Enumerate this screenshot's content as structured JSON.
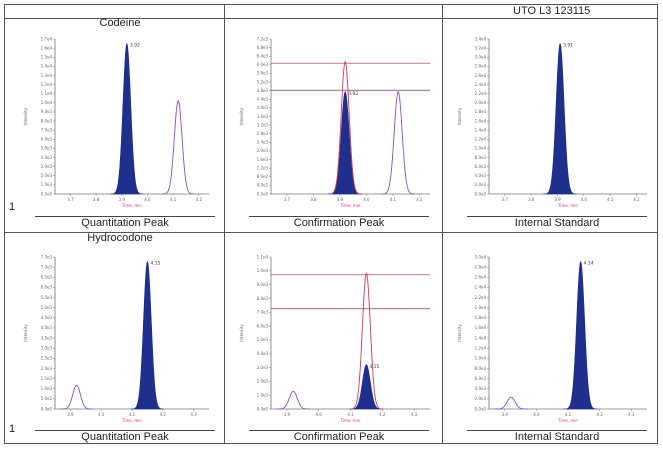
{
  "header": {
    "sample_title": "UTO L3 123115"
  },
  "rows": [
    {
      "analyte": "Codeine",
      "index": "1",
      "panels": [
        {
          "footer": "Quantitation Peak",
          "peak_label": "3.92",
          "x_tick_labels": [
            "3.7",
            "3.8",
            "3.9",
            "4.0",
            "4.1",
            "4.2"
          ],
          "y_tick_labels": [
            "1.7e4",
            "1.6e4",
            "1.5e4",
            "1.4e4",
            "1.3e4",
            "1.2e4",
            "1.1e4",
            "1.0e4",
            "9.0e3",
            "8.0e3",
            "7.0e3",
            "6.0e3",
            "5.0e3",
            "4.0e3",
            "3.0e3",
            "2.0e3",
            "1.0e3",
            "0.0e0"
          ],
          "x_axis_label": "Time, min",
          "y_axis_label": "Intensity"
        },
        {
          "footer": "Confirmation Peak",
          "peak_label": "3.92",
          "x_tick_labels": [
            "3.7",
            "3.8",
            "3.9",
            "4.0",
            "4.1",
            "4.2"
          ],
          "y_tick_labels": [
            "7.2e3",
            "6.8e3",
            "6.4e3",
            "6.0e3",
            "5.6e3",
            "5.2e3",
            "4.8e3",
            "4.4e3",
            "4.0e3",
            "3.6e3",
            "3.2e3",
            "2.8e3",
            "2.4e3",
            "2.0e3",
            "1.6e3",
            "1.2e3",
            "8.0e2",
            "4.0e2",
            "0.0e0"
          ],
          "x_axis_label": "Time, min",
          "y_axis_label": "Intensity"
        },
        {
          "footer": "Internal Standard",
          "peak_label": "3.91",
          "x_tick_labels": [
            "3.7",
            "3.8",
            "3.9",
            "4.0",
            "4.1",
            "4.2"
          ],
          "y_tick_labels": [
            "3.4e4",
            "3.2e4",
            "3.0e4",
            "2.8e4",
            "2.6e4",
            "2.4e4",
            "2.2e4",
            "2.0e4",
            "1.8e4",
            "1.6e4",
            "1.4e4",
            "1.2e4",
            "1.0e4",
            "8.0e3",
            "6.0e3",
            "4.0e3",
            "2.0e3",
            "0.0e0"
          ],
          "x_axis_label": "Time, min",
          "y_axis_label": "Intensity"
        }
      ]
    },
    {
      "analyte": "Hydrocodone",
      "index": "1",
      "panels": [
        {
          "footer": "Quantitation Peak",
          "peak_label": "4.15",
          "x_tick_labels": [
            "3.9",
            "4.0",
            "4.1",
            "4.2",
            "4.3"
          ],
          "y_tick_labels": [
            "7.5e3",
            "7.0e3",
            "6.5e3",
            "6.0e3",
            "5.5e3",
            "5.0e3",
            "4.5e3",
            "4.0e3",
            "3.5e3",
            "3.0e3",
            "2.5e3",
            "2.0e3",
            "1.5e3",
            "1.0e3",
            "5.0e2",
            "0.0e0"
          ],
          "x_axis_label": "Time, min",
          "y_axis_label": "Intensity"
        },
        {
          "footer": "Confirmation Peak",
          "peak_label": "4.15",
          "x_tick_labels": [
            "3.9",
            "4.0",
            "4.1",
            "4.2",
            "4.3"
          ],
          "y_tick_labels": [
            "1.1e4",
            "1.0e4",
            "9.0e3",
            "8.0e3",
            "7.0e3",
            "6.0e3",
            "5.0e3",
            "4.0e3",
            "3.0e3",
            "2.0e3",
            "1.0e3",
            "0.0e0"
          ],
          "x_axis_label": "Time, min",
          "y_axis_label": "Intensity"
        },
        {
          "footer": "Internal Standard",
          "peak_label": "4.14",
          "x_tick_labels": [
            "3.9",
            "4.0",
            "4.1",
            "4.2",
            "4.3"
          ],
          "y_tick_labels": [
            "3.0e4",
            "2.8e4",
            "2.6e4",
            "2.4e4",
            "2.2e4",
            "2.0e4",
            "1.8e4",
            "1.6e4",
            "1.4e4",
            "1.2e4",
            "1.0e4",
            "8.0e3",
            "6.0e3",
            "4.0e3",
            "2.0e3",
            "0.0e0"
          ],
          "x_axis_label": "Time, min",
          "y_axis_label": "Intensity"
        }
      ]
    }
  ],
  "colors": {
    "fill_peak": "#1f2f8c",
    "overlay_trace": "#8a50b8",
    "confirmation_trace": "#d0385c",
    "ion_ratio_window": "#8b3a4a",
    "axis": "#777777"
  },
  "chart_data": [
    {
      "type": "area",
      "title": "Codeine",
      "peaks": [
        {
          "center": 3.92,
          "rel_height": 1.0,
          "filled": true
        },
        {
          "center": 4.12,
          "rel_height": 0.62,
          "filled": false
        }
      ],
      "xlim": [
        3.64,
        4.24
      ]
    },
    {
      "type": "area",
      "peaks": [
        {
          "center": 3.92,
          "rel_height": 0.68,
          "filled": true
        },
        {
          "center": 3.92,
          "rel_height": 0.88,
          "trace": "confirmation"
        },
        {
          "center": 4.12,
          "rel_height": 0.68,
          "filled": false
        }
      ],
      "ion_ratio_window": [
        0.87,
        0.69
      ],
      "xlim": [
        3.64,
        4.24
      ]
    },
    {
      "type": "area",
      "peaks": [
        {
          "center": 3.91,
          "rel_height": 1.0,
          "filled": true
        }
      ],
      "xlim": [
        3.64,
        4.24
      ]
    },
    {
      "type": "area",
      "title": "Hydrocodone",
      "peaks": [
        {
          "center": 4.15,
          "rel_height": 1.0,
          "filled": true
        },
        {
          "center": 3.92,
          "rel_height": 0.16,
          "filled": false
        }
      ],
      "xlim": [
        3.85,
        4.35
      ]
    },
    {
      "type": "area",
      "peaks": [
        {
          "center": 4.15,
          "rel_height": 0.3,
          "filled": true
        },
        {
          "center": 4.15,
          "rel_height": 0.92,
          "trace": "confirmation"
        },
        {
          "center": 3.92,
          "rel_height": 0.12,
          "filled": false
        }
      ],
      "ion_ratio_window": [
        0.91,
        0.68
      ],
      "xlim": [
        3.85,
        4.35
      ]
    },
    {
      "type": "area",
      "peaks": [
        {
          "center": 4.14,
          "rel_height": 1.0,
          "filled": true
        },
        {
          "center": 3.92,
          "rel_height": 0.08,
          "filled": false
        }
      ],
      "xlim": [
        3.85,
        4.35
      ]
    }
  ]
}
